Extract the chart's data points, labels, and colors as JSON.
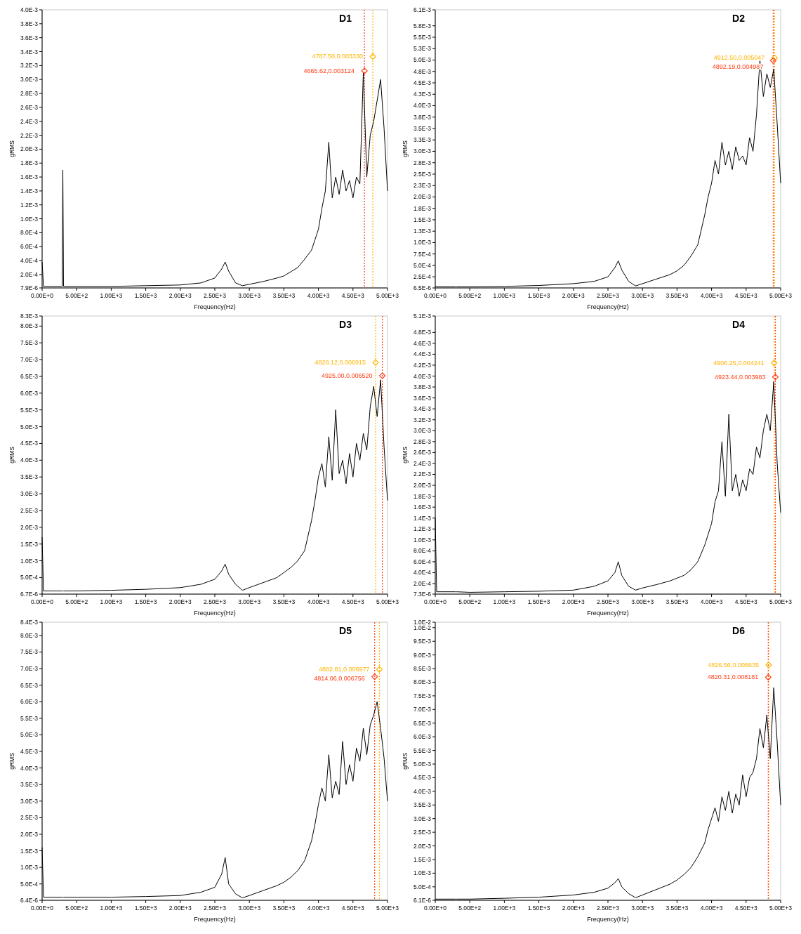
{
  "chart_data": [
    {
      "type": "line",
      "title": "D1",
      "xlabel": "Frequency(Hz)",
      "ylabel": "gRMS",
      "x": [
        0,
        20,
        290,
        300,
        310,
        500,
        1000,
        1500,
        2000,
        2300,
        2500,
        2600,
        2650,
        2700,
        2800,
        2900,
        3000,
        3200,
        3400,
        3500,
        3600,
        3700,
        3800,
        3900,
        3950,
        4000,
        4050,
        4100,
        4150,
        4200,
        4250,
        4300,
        4350,
        4400,
        4450,
        4500,
        4550,
        4600,
        4650,
        4700,
        4750,
        4800,
        4850,
        4900,
        4950,
        5000
      ],
      "series": [
        {
          "color": "#000000",
          "values": [
            0.00038,
            3e-05,
            3e-05,
            0.0017,
            3e-05,
            3e-05,
            3e-05,
            4e-05,
            5e-05,
            8e-05,
            0.00015,
            0.00028,
            0.00038,
            0.00025,
            8e-05,
            4e-05,
            6e-05,
            0.0001,
            0.00015,
            0.00018,
            0.00024,
            0.0003,
            0.00042,
            0.00055,
            0.0007,
            0.00085,
            0.00115,
            0.0014,
            0.0021,
            0.0013,
            0.0016,
            0.00135,
            0.0017,
            0.0014,
            0.00155,
            0.0013,
            0.0016,
            0.0015,
            0.0031,
            0.0016,
            0.0022,
            0.0024,
            0.0027,
            0.003,
            0.0023,
            0.0014
          ]
        }
      ],
      "xlim": [
        0,
        5000
      ],
      "xticks": [
        {
          "value": 0,
          "label": "0.00E+0"
        },
        {
          "value": 500,
          "label": "5.00E+2"
        },
        {
          "value": 1000,
          "label": "1.00E+3"
        },
        {
          "value": 1500,
          "label": "1.50E+3"
        },
        {
          "value": 2000,
          "label": "2.00E+3"
        },
        {
          "value": 2500,
          "label": "2.50E+3"
        },
        {
          "value": 3000,
          "label": "3.00E+3"
        },
        {
          "value": 3500,
          "label": "3.50E+3"
        },
        {
          "value": 4000,
          "label": "4.00E+3"
        },
        {
          "value": 4500,
          "label": "4.50E+3"
        },
        {
          "value": 5000,
          "label": "5.00E+3"
        }
      ],
      "ylim": [
        7.9e-06,
        0.004
      ],
      "yticks": [
        {
          "value": 7.9e-06,
          "label": "7.9E-6"
        },
        {
          "value": 0.0002,
          "label": "2.0E-4"
        },
        {
          "value": 0.0004,
          "label": "4.0E-4"
        },
        {
          "value": 0.0006,
          "label": "6.0E-4"
        },
        {
          "value": 0.0008,
          "label": "8.0E-4"
        },
        {
          "value": 0.001,
          "label": "1.0E-3"
        },
        {
          "value": 0.0012,
          "label": "1.2E-3"
        },
        {
          "value": 0.0014,
          "label": "1.4E-3"
        },
        {
          "value": 0.0016,
          "label": "1.6E-3"
        },
        {
          "value": 0.0018,
          "label": "1.8E-3"
        },
        {
          "value": 0.002,
          "label": "2.0E-3"
        },
        {
          "value": 0.0022,
          "label": "2.2E-3"
        },
        {
          "value": 0.0024,
          "label": "2.4E-3"
        },
        {
          "value": 0.0026,
          "label": "2.6E-3"
        },
        {
          "value": 0.0028,
          "label": "2.8E-3"
        },
        {
          "value": 0.003,
          "label": "3.0E-3"
        },
        {
          "value": 0.0032,
          "label": "3.2E-3"
        },
        {
          "value": 0.0034,
          "label": "3.4E-3"
        },
        {
          "value": 0.0036,
          "label": "3.6E-3"
        },
        {
          "value": 0.0038,
          "label": "3.8E-3"
        },
        {
          "value": 0.004,
          "label": "4.0E-3"
        }
      ],
      "ref_lines": [
        {
          "axis": "x",
          "value": 4787.5,
          "color": "#ffb400",
          "line_style": "dotted"
        },
        {
          "axis": "x",
          "value": 4665.62,
          "color": "#ff3c14",
          "line_style": "dotted"
        }
      ],
      "annotations": [
        {
          "text": "4787.50,0.003330",
          "x": 4787.5,
          "y": 0.00333
        },
        {
          "text": "4665.62,0.003124",
          "x": 4665.62,
          "y": 0.003124
        }
      ]
    },
    {
      "type": "line",
      "title": "D2",
      "xlabel": "Frequency(Hz)",
      "ylabel": "gRMS",
      "x": [
        0,
        20,
        290,
        300,
        310,
        500,
        1000,
        1500,
        2000,
        2300,
        2500,
        2600,
        2650,
        2700,
        2800,
        2900,
        3000,
        3200,
        3400,
        3500,
        3600,
        3700,
        3800,
        3900,
        3950,
        4000,
        4050,
        4100,
        4150,
        4200,
        4250,
        4300,
        4350,
        4400,
        4450,
        4500,
        4550,
        4600,
        4650,
        4700,
        4750,
        4800,
        4850,
        4900,
        4950,
        5000
      ],
      "series": [
        {
          "color": "#000000",
          "values": [
            5e-05,
            3e-05,
            3e-05,
            3e-05,
            3e-05,
            3e-05,
            4e-05,
            6e-05,
            0.0001,
            0.00015,
            0.00025,
            0.00045,
            0.0006,
            0.0004,
            0.00015,
            5e-05,
            0.0001,
            0.0002,
            0.0003,
            0.00038,
            0.0005,
            0.0007,
            0.00095,
            0.0016,
            0.002,
            0.0023,
            0.0028,
            0.0025,
            0.0032,
            0.0027,
            0.003,
            0.0026,
            0.0031,
            0.0028,
            0.0029,
            0.0027,
            0.0033,
            0.003,
            0.0038,
            0.005,
            0.0042,
            0.0047,
            0.0044,
            0.0048,
            0.0036,
            0.0023
          ]
        }
      ],
      "xlim": [
        0,
        5000
      ],
      "xticks": [
        {
          "value": 0,
          "label": "0.00E+0"
        },
        {
          "value": 500,
          "label": "5.00E+2"
        },
        {
          "value": 1000,
          "label": "1.00E+3"
        },
        {
          "value": 1500,
          "label": "1.50E+3"
        },
        {
          "value": 2000,
          "label": "2.00E+3"
        },
        {
          "value": 2500,
          "label": "2.50E+3"
        },
        {
          "value": 3000,
          "label": "3.00E+3"
        },
        {
          "value": 3500,
          "label": "3.50E+3"
        },
        {
          "value": 4000,
          "label": "4.00E+3"
        },
        {
          "value": 4500,
          "label": "4.50E+3"
        },
        {
          "value": 5000,
          "label": "5.00E+3"
        }
      ],
      "ylim": [
        6.5e-06,
        0.0061
      ],
      "yticks": [
        {
          "value": 6.5e-06,
          "label": "6.5E-6"
        },
        {
          "value": 0.00025,
          "label": "2.5E-4"
        },
        {
          "value": 0.0005,
          "label": "5.0E-4"
        },
        {
          "value": 0.00075,
          "label": "7.5E-4"
        },
        {
          "value": 0.001,
          "label": "1.0E-3"
        },
        {
          "value": 0.00125,
          "label": "1.3E-3"
        },
        {
          "value": 0.0015,
          "label": "1.5E-3"
        },
        {
          "value": 0.00175,
          "label": "1.8E-3"
        },
        {
          "value": 0.002,
          "label": "2.0E-3"
        },
        {
          "value": 0.00225,
          "label": "2.3E-3"
        },
        {
          "value": 0.0025,
          "label": "2.5E-3"
        },
        {
          "value": 0.00275,
          "label": "2.8E-3"
        },
        {
          "value": 0.003,
          "label": "3.0E-3"
        },
        {
          "value": 0.00325,
          "label": "3.3E-3"
        },
        {
          "value": 0.0035,
          "label": "3.5E-3"
        },
        {
          "value": 0.00375,
          "label": "3.8E-3"
        },
        {
          "value": 0.004,
          "label": "4.0E-3"
        },
        {
          "value": 0.00425,
          "label": "4.3E-3"
        },
        {
          "value": 0.0045,
          "label": "4.5E-3"
        },
        {
          "value": 0.00475,
          "label": "4.8E-3"
        },
        {
          "value": 0.005,
          "label": "5.0E-3"
        },
        {
          "value": 0.00525,
          "label": "5.3E-3"
        },
        {
          "value": 0.0055,
          "label": "5.5E-3"
        },
        {
          "value": 0.00575,
          "label": "5.8E-3"
        },
        {
          "value": 0.0061,
          "label": "6.1E-3"
        }
      ],
      "ref_lines": [
        {
          "axis": "x",
          "value": 4912.5,
          "color": "#ffb400",
          "line_style": "dotted"
        },
        {
          "axis": "x",
          "value": 4892.19,
          "color": "#ff3c14",
          "line_style": "dotted"
        }
      ],
      "annotations": [
        {
          "text": "4912.50,0.005047",
          "x": 4912.5,
          "y": 0.005047
        },
        {
          "text": "4892.19,0.004987",
          "x": 4892.19,
          "y": 0.004987
        }
      ]
    },
    {
      "type": "line",
      "title": "D3",
      "xlabel": "Frequency(Hz)",
      "ylabel": "gRMS",
      "x": [
        0,
        20,
        290,
        300,
        310,
        500,
        1000,
        1500,
        2000,
        2300,
        2500,
        2600,
        2650,
        2700,
        2800,
        2900,
        3000,
        3200,
        3400,
        3500,
        3600,
        3700,
        3800,
        3900,
        3950,
        4000,
        4050,
        4100,
        4150,
        4200,
        4250,
        4300,
        4350,
        4400,
        4450,
        4500,
        4550,
        4600,
        4650,
        4700,
        4750,
        4800,
        4850,
        4900,
        4950,
        5000
      ],
      "series": [
        {
          "color": "#000000",
          "values": [
            0.0017,
            0.0001,
            0.0001,
            0.0001,
            0.0001,
            0.0001,
            0.00012,
            0.00015,
            0.0002,
            0.0003,
            0.00045,
            0.0007,
            0.0009,
            0.0006,
            0.0003,
            0.00012,
            0.0002,
            0.00035,
            0.0005,
            0.00065,
            0.0008,
            0.001,
            0.0013,
            0.0022,
            0.0028,
            0.0035,
            0.0039,
            0.0032,
            0.0047,
            0.0034,
            0.0055,
            0.0036,
            0.004,
            0.0033,
            0.0042,
            0.0035,
            0.0045,
            0.004,
            0.0048,
            0.0043,
            0.0056,
            0.0062,
            0.0053,
            0.0064,
            0.0044,
            0.0028
          ]
        }
      ],
      "xlim": [
        0,
        5000
      ],
      "xticks": [
        {
          "value": 0,
          "label": "0.00E+0"
        },
        {
          "value": 500,
          "label": "5.00E+2"
        },
        {
          "value": 1000,
          "label": "1.00E+3"
        },
        {
          "value": 1500,
          "label": "1.50E+3"
        },
        {
          "value": 2000,
          "label": "2.00E+3"
        },
        {
          "value": 2500,
          "label": "2.50E+3"
        },
        {
          "value": 3000,
          "label": "3.00E+3"
        },
        {
          "value": 3500,
          "label": "3.50E+3"
        },
        {
          "value": 4000,
          "label": "4.00E+3"
        },
        {
          "value": 4500,
          "label": "4.50E+3"
        },
        {
          "value": 5000,
          "label": "5.00E+3"
        }
      ],
      "ylim": [
        6.7e-06,
        0.0083
      ],
      "yticks": [
        {
          "value": 6.7e-06,
          "label": "6.7E-6"
        },
        {
          "value": 0.0005,
          "label": "5.0E-4"
        },
        {
          "value": 0.001,
          "label": "1.0E-3"
        },
        {
          "value": 0.0015,
          "label": "1.5E-3"
        },
        {
          "value": 0.002,
          "label": "2.0E-3"
        },
        {
          "value": 0.0025,
          "label": "2.5E-3"
        },
        {
          "value": 0.003,
          "label": "3.0E-3"
        },
        {
          "value": 0.0035,
          "label": "3.5E-3"
        },
        {
          "value": 0.004,
          "label": "4.0E-3"
        },
        {
          "value": 0.0045,
          "label": "4.5E-3"
        },
        {
          "value": 0.005,
          "label": "5.0E-3"
        },
        {
          "value": 0.0055,
          "label": "5.5E-3"
        },
        {
          "value": 0.006,
          "label": "6.0E-3"
        },
        {
          "value": 0.0065,
          "label": "6.5E-3"
        },
        {
          "value": 0.007,
          "label": "7.0E-3"
        },
        {
          "value": 0.0075,
          "label": "7.5E-3"
        },
        {
          "value": 0.008,
          "label": "8.0E-3"
        },
        {
          "value": 0.0083,
          "label": "8.3E-3"
        }
      ],
      "ref_lines": [
        {
          "axis": "x",
          "value": 4828.12,
          "color": "#ffb400",
          "line_style": "dotted"
        },
        {
          "axis": "x",
          "value": 4925.0,
          "color": "#ff3c14",
          "line_style": "dotted"
        }
      ],
      "annotations": [
        {
          "text": "4828.12,0.006915",
          "x": 4828.12,
          "y": 0.006915
        },
        {
          "text": "4925.00,0.006520",
          "x": 4925.0,
          "y": 0.00652
        }
      ]
    },
    {
      "type": "line",
      "title": "D4",
      "xlabel": "Frequency(Hz)",
      "ylabel": "gRMS",
      "x": [
        0,
        20,
        290,
        300,
        310,
        500,
        1000,
        1500,
        2000,
        2300,
        2500,
        2600,
        2650,
        2700,
        2800,
        2900,
        3000,
        3200,
        3400,
        3500,
        3600,
        3700,
        3800,
        3900,
        3950,
        4000,
        4050,
        4100,
        4150,
        4200,
        4250,
        4300,
        4350,
        4400,
        4450,
        4500,
        4550,
        4600,
        4650,
        4700,
        4750,
        4800,
        4850,
        4900,
        4950,
        5000
      ],
      "series": [
        {
          "color": "#000000",
          "values": [
            0.0014,
            5e-05,
            5e-05,
            5e-05,
            5e-05,
            4e-05,
            5e-05,
            6e-05,
            8e-05,
            0.00015,
            0.00025,
            0.0004,
            0.0006,
            0.00035,
            0.00015,
            8e-05,
            0.00012,
            0.00018,
            0.00025,
            0.0003,
            0.00035,
            0.00045,
            0.0006,
            0.0009,
            0.0011,
            0.0013,
            0.0017,
            0.0019,
            0.0028,
            0.0018,
            0.0033,
            0.0019,
            0.0022,
            0.0018,
            0.0021,
            0.0019,
            0.0023,
            0.0022,
            0.0027,
            0.0025,
            0.003,
            0.0033,
            0.003,
            0.0039,
            0.0024,
            0.0015
          ]
        }
      ],
      "xlim": [
        0,
        5000
      ],
      "xticks": [
        {
          "value": 0,
          "label": "0.00E+0"
        },
        {
          "value": 500,
          "label": "5.00E+2"
        },
        {
          "value": 1000,
          "label": "1.00E+3"
        },
        {
          "value": 1500,
          "label": "1.50E+3"
        },
        {
          "value": 2000,
          "label": "2.00E+3"
        },
        {
          "value": 2500,
          "label": "2.50E+3"
        },
        {
          "value": 3000,
          "label": "3.00E+3"
        },
        {
          "value": 3500,
          "label": "3.50E+3"
        },
        {
          "value": 4000,
          "label": "4.00E+3"
        },
        {
          "value": 4500,
          "label": "4.50E+3"
        },
        {
          "value": 5000,
          "label": "5.00E+3"
        }
      ],
      "ylim": [
        7.3e-06,
        0.0051
      ],
      "yticks": [
        {
          "value": 7.3e-06,
          "label": "7.3E-6"
        },
        {
          "value": 0.0002,
          "label": "2.0E-4"
        },
        {
          "value": 0.0004,
          "label": "4.0E-4"
        },
        {
          "value": 0.0006,
          "label": "6.0E-4"
        },
        {
          "value": 0.0008,
          "label": "8.0E-4"
        },
        {
          "value": 0.001,
          "label": "1.0E-3"
        },
        {
          "value": 0.0012,
          "label": "1.2E-3"
        },
        {
          "value": 0.0014,
          "label": "1.4E-3"
        },
        {
          "value": 0.0016,
          "label": "1.6E-3"
        },
        {
          "value": 0.0018,
          "label": "1.8E-3"
        },
        {
          "value": 0.002,
          "label": "2.0E-3"
        },
        {
          "value": 0.0022,
          "label": "2.2E-3"
        },
        {
          "value": 0.0024,
          "label": "2.4E-3"
        },
        {
          "value": 0.0026,
          "label": "2.6E-3"
        },
        {
          "value": 0.0028,
          "label": "2.8E-3"
        },
        {
          "value": 0.003,
          "label": "3.0E-3"
        },
        {
          "value": 0.0032,
          "label": "3.2E-3"
        },
        {
          "value": 0.0034,
          "label": "3.4E-3"
        },
        {
          "value": 0.0036,
          "label": "3.6E-3"
        },
        {
          "value": 0.0038,
          "label": "3.8E-3"
        },
        {
          "value": 0.004,
          "label": "4.0E-3"
        },
        {
          "value": 0.0042,
          "label": "4.2E-3"
        },
        {
          "value": 0.0044,
          "label": "4.4E-3"
        },
        {
          "value": 0.0046,
          "label": "4.6E-3"
        },
        {
          "value": 0.0048,
          "label": "4.8E-3"
        },
        {
          "value": 0.0051,
          "label": "5.1E-3"
        }
      ],
      "ref_lines": [
        {
          "axis": "x",
          "value": 4906.25,
          "color": "#ffb400",
          "line_style": "dotted"
        },
        {
          "axis": "x",
          "value": 4923.44,
          "color": "#ff3c14",
          "line_style": "dotted"
        }
      ],
      "annotations": [
        {
          "text": "4906.25,0.004241",
          "x": 4906.25,
          "y": 0.004241
        },
        {
          "text": "4923.44,0.003983",
          "x": 4923.44,
          "y": 0.003983
        }
      ]
    },
    {
      "type": "line",
      "title": "D5",
      "xlabel": "Frequency(Hz)",
      "ylabel": "gRMS",
      "x": [
        0,
        20,
        290,
        300,
        310,
        500,
        1000,
        1500,
        2000,
        2300,
        2500,
        2600,
        2650,
        2700,
        2800,
        2900,
        3000,
        3200,
        3400,
        3500,
        3600,
        3700,
        3800,
        3900,
        3950,
        4000,
        4050,
        4100,
        4150,
        4200,
        4250,
        4300,
        4350,
        4400,
        4450,
        4500,
        4550,
        4600,
        4650,
        4700,
        4750,
        4800,
        4850,
        4900,
        4950,
        5000
      ],
      "series": [
        {
          "color": "#000000",
          "values": [
            0.0016,
            0.0001,
            0.0001,
            0.0001,
            0.0001,
            0.0001,
            0.0001,
            0.00012,
            0.00015,
            0.00025,
            0.0004,
            0.0008,
            0.0013,
            0.0005,
            0.0002,
            8e-05,
            0.00015,
            0.0003,
            0.00045,
            0.00055,
            0.0007,
            0.0009,
            0.0012,
            0.0018,
            0.0023,
            0.0029,
            0.0034,
            0.003,
            0.0044,
            0.0031,
            0.0036,
            0.0032,
            0.0048,
            0.0035,
            0.0041,
            0.0036,
            0.0046,
            0.0042,
            0.0052,
            0.0044,
            0.0053,
            0.0056,
            0.006,
            0.0052,
            0.0043,
            0.003
          ]
        }
      ],
      "xlim": [
        0,
        5000
      ],
      "xticks": [
        {
          "value": 0,
          "label": "0.00E+0"
        },
        {
          "value": 500,
          "label": "5.00E+2"
        },
        {
          "value": 1000,
          "label": "1.00E+3"
        },
        {
          "value": 1500,
          "label": "1.50E+3"
        },
        {
          "value": 2000,
          "label": "2.00E+3"
        },
        {
          "value": 2500,
          "label": "2.50E+3"
        },
        {
          "value": 3000,
          "label": "3.00E+3"
        },
        {
          "value": 3500,
          "label": "3.50E+3"
        },
        {
          "value": 4000,
          "label": "4.00E+3"
        },
        {
          "value": 4500,
          "label": "4.50E+3"
        },
        {
          "value": 5000,
          "label": "5.00E+3"
        }
      ],
      "ylim": [
        6.4e-06,
        0.0084
      ],
      "yticks": [
        {
          "value": 6.4e-06,
          "label": "6.4E-6"
        },
        {
          "value": 0.0005,
          "label": "5.0E-4"
        },
        {
          "value": 0.001,
          "label": "1.0E-3"
        },
        {
          "value": 0.0015,
          "label": "1.5E-3"
        },
        {
          "value": 0.002,
          "label": "2.0E-3"
        },
        {
          "value": 0.0025,
          "label": "2.5E-3"
        },
        {
          "value": 0.003,
          "label": "3.0E-3"
        },
        {
          "value": 0.0035,
          "label": "3.5E-3"
        },
        {
          "value": 0.004,
          "label": "4.0E-3"
        },
        {
          "value": 0.0045,
          "label": "4.5E-3"
        },
        {
          "value": 0.005,
          "label": "5.0E-3"
        },
        {
          "value": 0.0055,
          "label": "5.5E-3"
        },
        {
          "value": 0.006,
          "label": "6.0E-3"
        },
        {
          "value": 0.0065,
          "label": "6.5E-3"
        },
        {
          "value": 0.007,
          "label": "7.0E-3"
        },
        {
          "value": 0.0075,
          "label": "7.5E-3"
        },
        {
          "value": 0.008,
          "label": "8.0E-3"
        },
        {
          "value": 0.0084,
          "label": "8.4E-3"
        }
      ],
      "ref_lines": [
        {
          "axis": "x",
          "value": 4882.81,
          "color": "#ffb400",
          "line_style": "dotted"
        },
        {
          "axis": "x",
          "value": 4814.06,
          "color": "#ff3c14",
          "line_style": "dotted"
        }
      ],
      "annotations": [
        {
          "text": "4882.81,0.006977",
          "x": 4882.81,
          "y": 0.006977
        },
        {
          "text": "4814.06,0.006756",
          "x": 4814.06,
          "y": 0.006756
        }
      ]
    },
    {
      "type": "line",
      "title": "D6",
      "xlabel": "Frequency(Hz)",
      "ylabel": "gRMS",
      "x": [
        0,
        20,
        290,
        300,
        310,
        500,
        1000,
        1500,
        2000,
        2300,
        2500,
        2600,
        2650,
        2700,
        2800,
        2900,
        3000,
        3200,
        3400,
        3500,
        3600,
        3700,
        3800,
        3900,
        3950,
        4000,
        4050,
        4100,
        4150,
        4200,
        4250,
        4300,
        4350,
        4400,
        4450,
        4500,
        4550,
        4600,
        4650,
        4700,
        4750,
        4800,
        4850,
        4900,
        4950,
        5000
      ],
      "series": [
        {
          "color": "#000000",
          "values": [
            5e-05,
            5e-05,
            5e-05,
            5e-05,
            5e-05,
            5e-05,
            8e-05,
            0.00012,
            0.0002,
            0.0003,
            0.00045,
            0.00065,
            0.0008,
            0.0005,
            0.00025,
            0.0001,
            0.0002,
            0.0004,
            0.0006,
            0.00075,
            0.00095,
            0.0012,
            0.0016,
            0.0021,
            0.0026,
            0.003,
            0.0034,
            0.0029,
            0.0038,
            0.0033,
            0.004,
            0.0032,
            0.0039,
            0.0035,
            0.0046,
            0.0038,
            0.0045,
            0.0047,
            0.0052,
            0.0063,
            0.0056,
            0.0068,
            0.0052,
            0.0078,
            0.0058,
            0.0035
          ]
        }
      ],
      "xlim": [
        0,
        5000
      ],
      "xticks": [
        {
          "value": 0,
          "label": "0.00E+0"
        },
        {
          "value": 500,
          "label": "5.00E+2"
        },
        {
          "value": 1000,
          "label": "1.00E+3"
        },
        {
          "value": 1500,
          "label": "1.50E+3"
        },
        {
          "value": 2000,
          "label": "2.00E+3"
        },
        {
          "value": 2500,
          "label": "2.50E+3"
        },
        {
          "value": 3000,
          "label": "3.00E+3"
        },
        {
          "value": 3500,
          "label": "3.50E+3"
        },
        {
          "value": 4000,
          "label": "4.00E+3"
        },
        {
          "value": 4500,
          "label": "4.50E+3"
        },
        {
          "value": 5000,
          "label": "5.00E+3"
        }
      ],
      "ylim": [
        6.1e-06,
        0.0102
      ],
      "yticks": [
        {
          "value": 6.1e-06,
          "label": "6.1E-6"
        },
        {
          "value": 0.0005,
          "label": "5.0E-4"
        },
        {
          "value": 0.001,
          "label": "1.0E-3"
        },
        {
          "value": 0.0015,
          "label": "1.5E-3"
        },
        {
          "value": 0.002,
          "label": "2.0E-3"
        },
        {
          "value": 0.0025,
          "label": "2.5E-3"
        },
        {
          "value": 0.003,
          "label": "3.0E-3"
        },
        {
          "value": 0.0035,
          "label": "3.5E-3"
        },
        {
          "value": 0.004,
          "label": "4.0E-3"
        },
        {
          "value": 0.0045,
          "label": "4.5E-3"
        },
        {
          "value": 0.005,
          "label": "5.0E-3"
        },
        {
          "value": 0.0055,
          "label": "5.5E-3"
        },
        {
          "value": 0.006,
          "label": "6.0E-3"
        },
        {
          "value": 0.0065,
          "label": "6.5E-3"
        },
        {
          "value": 0.007,
          "label": "7.0E-3"
        },
        {
          "value": 0.0075,
          "label": "7.5E-3"
        },
        {
          "value": 0.008,
          "label": "8.0E-3"
        },
        {
          "value": 0.0085,
          "label": "8.5E-3"
        },
        {
          "value": 0.009,
          "label": "9.0E-3"
        },
        {
          "value": 0.0095,
          "label": "9.5E-3"
        },
        {
          "value": 0.01,
          "label": "1.0E-2"
        },
        {
          "value": 0.0102,
          "label": "1.0E-2"
        }
      ],
      "ref_lines": [
        {
          "axis": "x",
          "value": 4826.56,
          "color": "#ffb400",
          "line_style": "dotted"
        },
        {
          "axis": "x",
          "value": 4820.31,
          "color": "#ff3c14",
          "line_style": "dotted"
        }
      ],
      "annotations": [
        {
          "text": "4826.56,0.008635",
          "x": 4826.56,
          "y": 0.008635
        },
        {
          "text": "4820.31,0.008181",
          "x": 4820.31,
          "y": 0.008181
        }
      ]
    }
  ]
}
